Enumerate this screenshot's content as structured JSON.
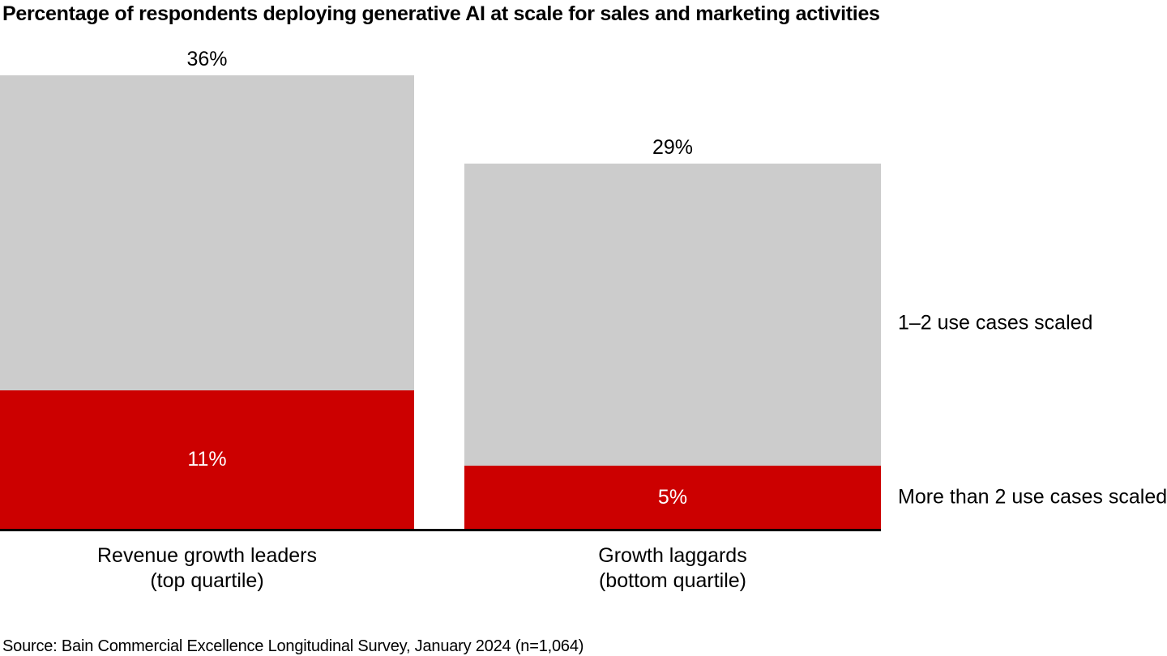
{
  "source": "Source: Bain Commercial Excellence Longitudinal Survey, January 2024 (n=1,064)",
  "colors": {
    "segment_gray": "#cccccc",
    "segment_red": "#cc0000",
    "axis_black": "#000000",
    "background": "#ffffff"
  },
  "chart_data": {
    "type": "bar",
    "stacked": true,
    "title": "Percentage of respondents deploying generative AI at scale for sales and marketing activities",
    "unit": "%",
    "categories": [
      {
        "line1": "Revenue growth leaders",
        "line2": "(top quartile)"
      },
      {
        "line1": "Growth laggards",
        "line2": "(bottom quartile)"
      }
    ],
    "series": [
      {
        "name": "1–2 use cases scaled",
        "color": "#cccccc",
        "values": [
          25,
          24
        ]
      },
      {
        "name": "More than 2 use cases scaled",
        "color": "#cc0000",
        "values": [
          11,
          5
        ]
      }
    ],
    "totals": [
      36,
      29
    ],
    "total_labels": [
      "36%",
      "29%"
    ],
    "segment_value_labels": [
      "11%",
      "5%"
    ],
    "axis": {
      "y_axis_visible": false,
      "gridlines": false,
      "baseline_visible": true
    },
    "legend_position": "right-of-second-bar"
  }
}
